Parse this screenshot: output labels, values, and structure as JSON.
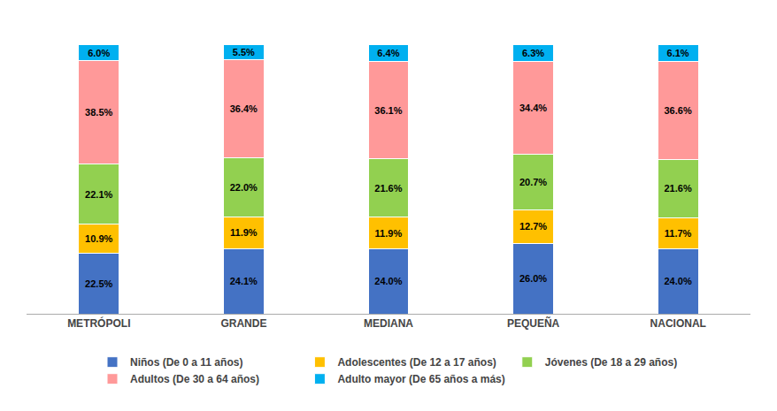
{
  "chart_data": {
    "type": "bar",
    "stacked": true,
    "categories": [
      "METRÓPOLI",
      "GRANDE",
      "MEDIANA",
      "PEQUEÑA",
      "NACIONAL"
    ],
    "series": [
      {
        "name": "Niños (De 0 a 11 años)",
        "color": "#4472C4",
        "values": [
          22.5,
          24.1,
          24.0,
          26.0,
          24.0
        ],
        "value_labels": [
          "22.5%",
          "24.1%",
          "24.0%",
          "26.0%",
          "24.0%"
        ]
      },
      {
        "name": "Adolescentes (De 12 a 17 años)",
        "color": "#FFC000",
        "values": [
          10.9,
          11.9,
          11.9,
          12.7,
          11.7
        ],
        "value_labels": [
          "10.9%",
          "11.9%",
          "11.9%",
          "12.7%",
          "11.7%"
        ]
      },
      {
        "name": "Jóvenes (De 18 a 29 años)",
        "color": "#92D050",
        "values": [
          22.1,
          22.0,
          21.6,
          20.7,
          21.6
        ],
        "value_labels": [
          "22.1%",
          "22.0%",
          "21.6%",
          "20.7%",
          "21.6%"
        ]
      },
      {
        "name": "Adultos (De 30 a 64 años)",
        "color": "#FF9999",
        "values": [
          38.5,
          36.4,
          36.1,
          34.4,
          36.6
        ],
        "value_labels": [
          "38.5%",
          "36.4%",
          "36.1%",
          "34.4%",
          "36.6%"
        ]
      },
      {
        "name": "Adulto mayor (De 65 años a más)",
        "color": "#00B0F0",
        "values": [
          6.0,
          5.5,
          6.4,
          6.3,
          6.1
        ],
        "value_labels": [
          "6.0%",
          "5.5%",
          "6.4%",
          "6.3%",
          "6.1%"
        ]
      }
    ],
    "ylim": [
      0,
      110
    ],
    "data_labels": true,
    "tick_labels": "x",
    "grid": false,
    "legend": "bottom"
  }
}
